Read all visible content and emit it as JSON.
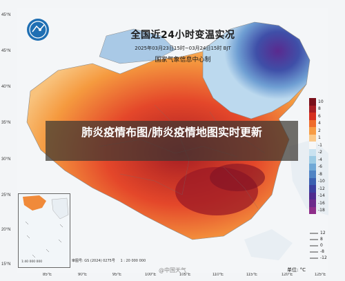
{
  "map": {
    "title": "全国近24小时变温实况",
    "subtitle": "2025年03月23日15时~03月24日15时 BJT",
    "organization": "国家气象信息中心制",
    "unit_label": "单位: °C",
    "approval_note": "审图号: GS (2024) 0275号",
    "scale_note": "1 : 20 000 000",
    "inset_scale": "1:40 000 000",
    "watermark": "@中国天气",
    "lat_ticks": [
      "45°N",
      "40°N",
      "35°N",
      "30°N",
      "25°N",
      "20°N",
      "15°N"
    ],
    "lon_ticks": [
      "85°E",
      "90°E",
      "95°E",
      "100°E",
      "105°E",
      "110°E",
      "115°E",
      "120°E",
      "125°E"
    ],
    "legend": {
      "labels": [
        "10",
        "8",
        "6",
        "4",
        "2",
        "1",
        "-1",
        "-2",
        "-4",
        "-6",
        "-8",
        "-10",
        "-12",
        "-14",
        "-16",
        "-18"
      ],
      "colors": [
        "#7a0f1a",
        "#a71d23",
        "#d7301f",
        "#ef6c2c",
        "#f79c45",
        "#fbc98a",
        "#f7f7f7",
        "#c9e2f0",
        "#9ccbe4",
        "#6fa8d6",
        "#4f83c4",
        "#3a5fb0",
        "#3b3f9f",
        "#4f2b8f",
        "#6d2a8c",
        "#8e2e8a"
      ]
    },
    "wind_legend": {
      "labels": [
        "12",
        "8",
        "0",
        "-8",
        "-12"
      ]
    }
  },
  "overlay": {
    "headline": "肺炎疫情布图/肺炎疫情地图实时更新"
  }
}
